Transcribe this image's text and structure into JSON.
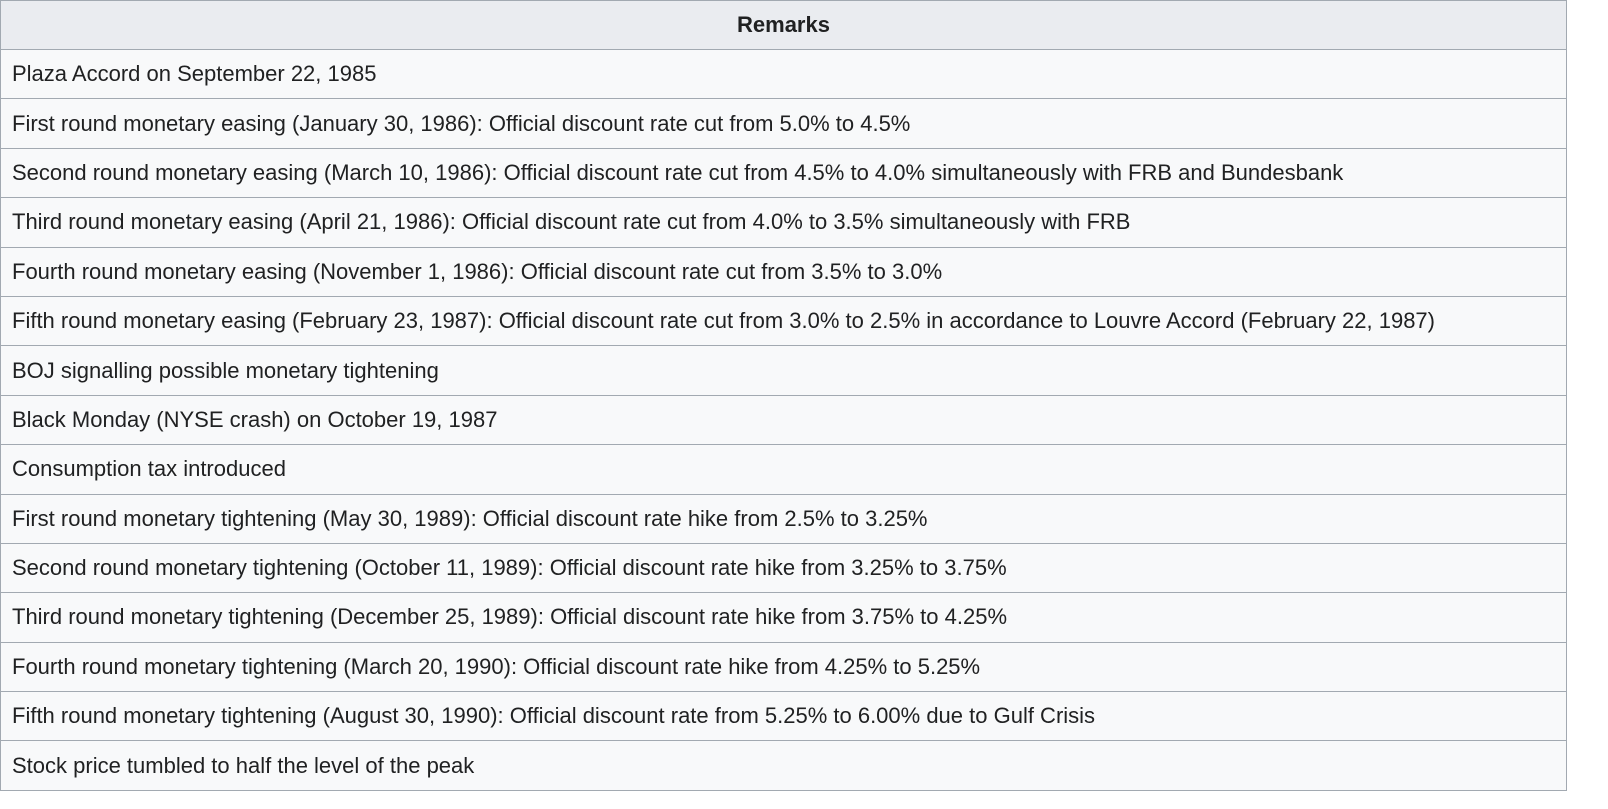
{
  "table": {
    "header": "Remarks",
    "rows": [
      "Plaza Accord on September 22, 1985",
      "First round monetary easing (January 30, 1986): Official discount rate cut from 5.0% to 4.5%",
      "Second round monetary easing (March 10, 1986): Official discount rate cut from 4.5% to 4.0% simultaneously with FRB and Bundesbank",
      "Third round monetary easing (April 21, 1986): Official discount rate cut from 4.0% to 3.5% simultaneously with FRB",
      "Fourth round monetary easing (November 1, 1986): Official discount rate cut from 3.5% to 3.0%",
      "Fifth round monetary easing (February 23, 1987): Official discount rate cut from 3.0% to 2.5% in accordance to Louvre Accord (February 22, 1987)",
      "BOJ signalling possible monetary tightening",
      "Black Monday (NYSE crash) on October 19, 1987",
      "Consumption tax introduced",
      "First round monetary tightening (May 30, 1989): Official discount rate hike from 2.5% to 3.25%",
      "Second round monetary tightening (October 11, 1989): Official discount rate hike from 3.25% to 3.75%",
      "Third round monetary tightening (December 25, 1989): Official discount rate hike from 3.75% to 4.25%",
      "Fourth round monetary tightening (March 20, 1990): Official discount rate hike from 4.25% to 5.25%",
      "Fifth round monetary tightening (August 30, 1990): Official discount rate from 5.25% to 6.00% due to Gulf Crisis",
      "Stock price tumbled to half the level of the peak"
    ]
  }
}
